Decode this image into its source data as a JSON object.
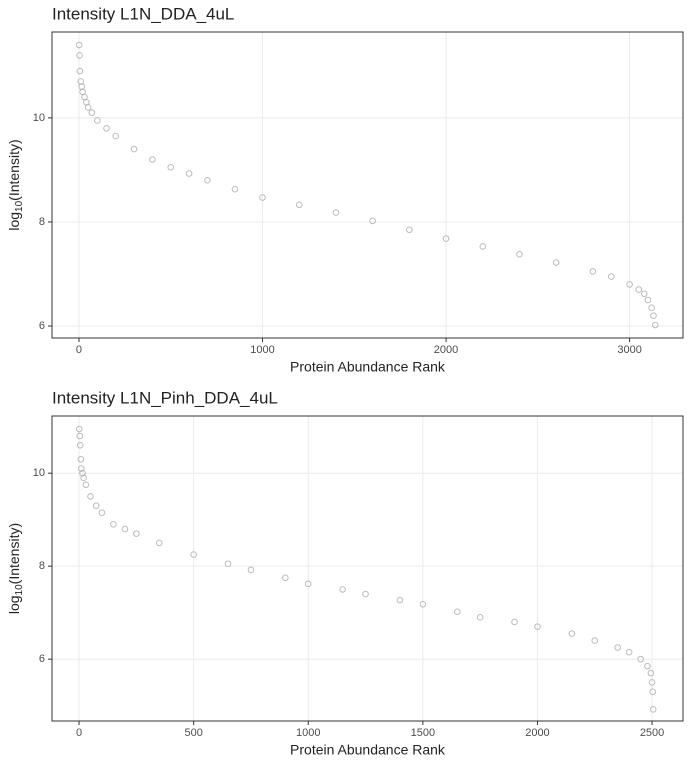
{
  "chart_data": [
    {
      "type": "scatter",
      "title": "Intensity L1N_DDA_4uL",
      "xlabel": "Protein Abundance Rank",
      "ylabel_prefix": "log",
      "ylabel_subscript": "10",
      "ylabel_suffix": "(Intensity)",
      "xlim": [
        -147,
        3291
      ],
      "ylim": [
        5.77,
        11.65
      ],
      "xticks": [
        0,
        1000,
        2000,
        3000
      ],
      "yticks": [
        6,
        8,
        10
      ],
      "grid": true,
      "series": [
        {
          "color": "#a6a6a6",
          "x": [
            1,
            3,
            5,
            10,
            15,
            20,
            30,
            40,
            50,
            70,
            100,
            150,
            200,
            300,
            400,
            500,
            600,
            700,
            850,
            1000,
            1200,
            1400,
            1600,
            1800,
            2000,
            2200,
            2400,
            2600,
            2800,
            2900,
            3000,
            3050,
            3080,
            3100,
            3120,
            3130,
            3140
          ],
          "values": [
            11.4,
            11.2,
            10.9,
            10.7,
            10.6,
            10.5,
            10.4,
            10.3,
            10.2,
            10.1,
            9.95,
            9.8,
            9.65,
            9.4,
            9.2,
            9.05,
            8.93,
            8.8,
            8.63,
            8.47,
            8.33,
            8.18,
            8.02,
            7.85,
            7.68,
            7.53,
            7.38,
            7.22,
            7.05,
            6.95,
            6.8,
            6.7,
            6.62,
            6.5,
            6.35,
            6.2,
            6.02
          ]
        }
      ]
    },
    {
      "type": "scatter",
      "title": "Intensity L1N_Pinh_DDA_4uL",
      "xlabel": "Protein Abundance Rank",
      "ylabel_prefix": "log",
      "ylabel_subscript": "10",
      "ylabel_suffix": "(Intensity)",
      "xlim": [
        -118,
        2635
      ],
      "ylim": [
        4.67,
        11.23
      ],
      "xticks": [
        0,
        500,
        1000,
        1500,
        2000,
        2500
      ],
      "yticks": [
        6,
        8,
        10
      ],
      "grid": true,
      "series": [
        {
          "color": "#a6a6a6",
          "x": [
            1,
            3,
            5,
            8,
            10,
            15,
            20,
            30,
            50,
            75,
            100,
            150,
            200,
            250,
            350,
            500,
            650,
            750,
            900,
            1000,
            1150,
            1250,
            1400,
            1500,
            1650,
            1750,
            1900,
            2000,
            2150,
            2250,
            2350,
            2400,
            2450,
            2480,
            2495,
            2500,
            2503,
            2505
          ],
          "values": [
            10.95,
            10.8,
            10.6,
            10.3,
            10.1,
            10.0,
            9.9,
            9.75,
            9.5,
            9.3,
            9.15,
            8.9,
            8.8,
            8.7,
            8.5,
            8.25,
            8.05,
            7.92,
            7.75,
            7.62,
            7.5,
            7.4,
            7.27,
            7.18,
            7.02,
            6.9,
            6.8,
            6.7,
            6.55,
            6.4,
            6.25,
            6.15,
            6.0,
            5.85,
            5.7,
            5.5,
            5.3,
            4.92
          ]
        }
      ]
    }
  ]
}
